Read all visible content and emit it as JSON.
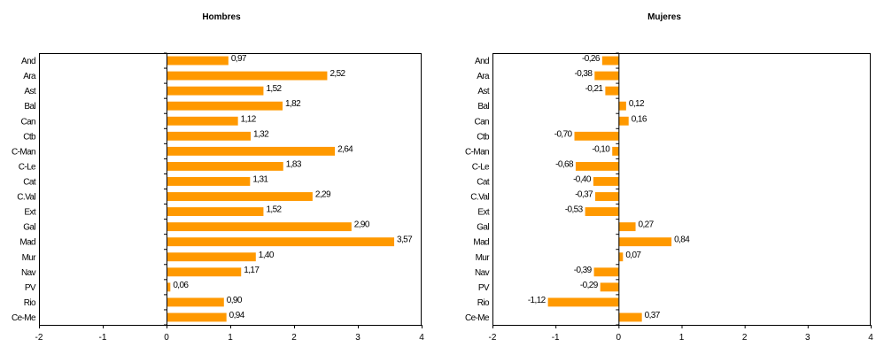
{
  "chart_data": [
    {
      "type": "bar",
      "orientation": "horizontal",
      "title": "Hombres",
      "categories": [
        "And",
        "Ara",
        "Ast",
        "Bal",
        "Can",
        "Ctb",
        "C-Man",
        "C-Le",
        "Cat",
        "C.Val",
        "Ext",
        "Gal",
        "Mad",
        "Mur",
        "Nav",
        "PV",
        "Rio",
        "Ce-Me"
      ],
      "values": [
        0.97,
        2.52,
        1.52,
        1.82,
        1.12,
        1.32,
        2.64,
        1.83,
        1.31,
        2.29,
        1.52,
        2.9,
        3.57,
        1.4,
        1.17,
        0.06,
        0.9,
        0.94
      ],
      "value_labels": [
        "0,97",
        "2,52",
        "1,52",
        "1,82",
        "1,12",
        "1,32",
        "2,64",
        "1,83",
        "1,31",
        "2,29",
        "1,52",
        "2,90",
        "3,57",
        "1,40",
        "1,17",
        "0,06",
        "0,90",
        "0,94"
      ],
      "xlim": [
        -2,
        4
      ],
      "xticks": [
        "-2",
        "-1",
        "0",
        "1",
        "2",
        "3",
        "4"
      ],
      "bar_color": "#FF9900",
      "grid": false
    },
    {
      "type": "bar",
      "orientation": "horizontal",
      "title": "Mujeres",
      "categories": [
        "And",
        "Ara",
        "Ast",
        "Bal",
        "Can",
        "Ctb",
        "C-Man",
        "C-Le",
        "Cat",
        "C.Val",
        "Ext",
        "Gal",
        "Mad",
        "Mur",
        "Nav",
        "PV",
        "Rio",
        "Ce-Me"
      ],
      "values": [
        -0.26,
        -0.38,
        -0.21,
        0.12,
        0.16,
        -0.7,
        -0.1,
        -0.68,
        -0.4,
        -0.37,
        -0.53,
        0.27,
        0.84,
        0.07,
        -0.39,
        -0.29,
        -1.12,
        0.37
      ],
      "value_labels": [
        "-0,26",
        "-0,38",
        "-0,21",
        "0,12",
        "0,16",
        "-0,70",
        "-0,10",
        "-0,68",
        "-0,40",
        "-0,37",
        "-0,53",
        "0,27",
        "0,84",
        "0,07",
        "-0,39",
        "-0,29",
        "-1,12",
        "0,37"
      ],
      "xlim": [
        -2,
        4
      ],
      "xticks": [
        "-2",
        "-1",
        "0",
        "1",
        "2",
        "3",
        "4"
      ],
      "bar_color": "#FF9900",
      "grid": false
    }
  ]
}
